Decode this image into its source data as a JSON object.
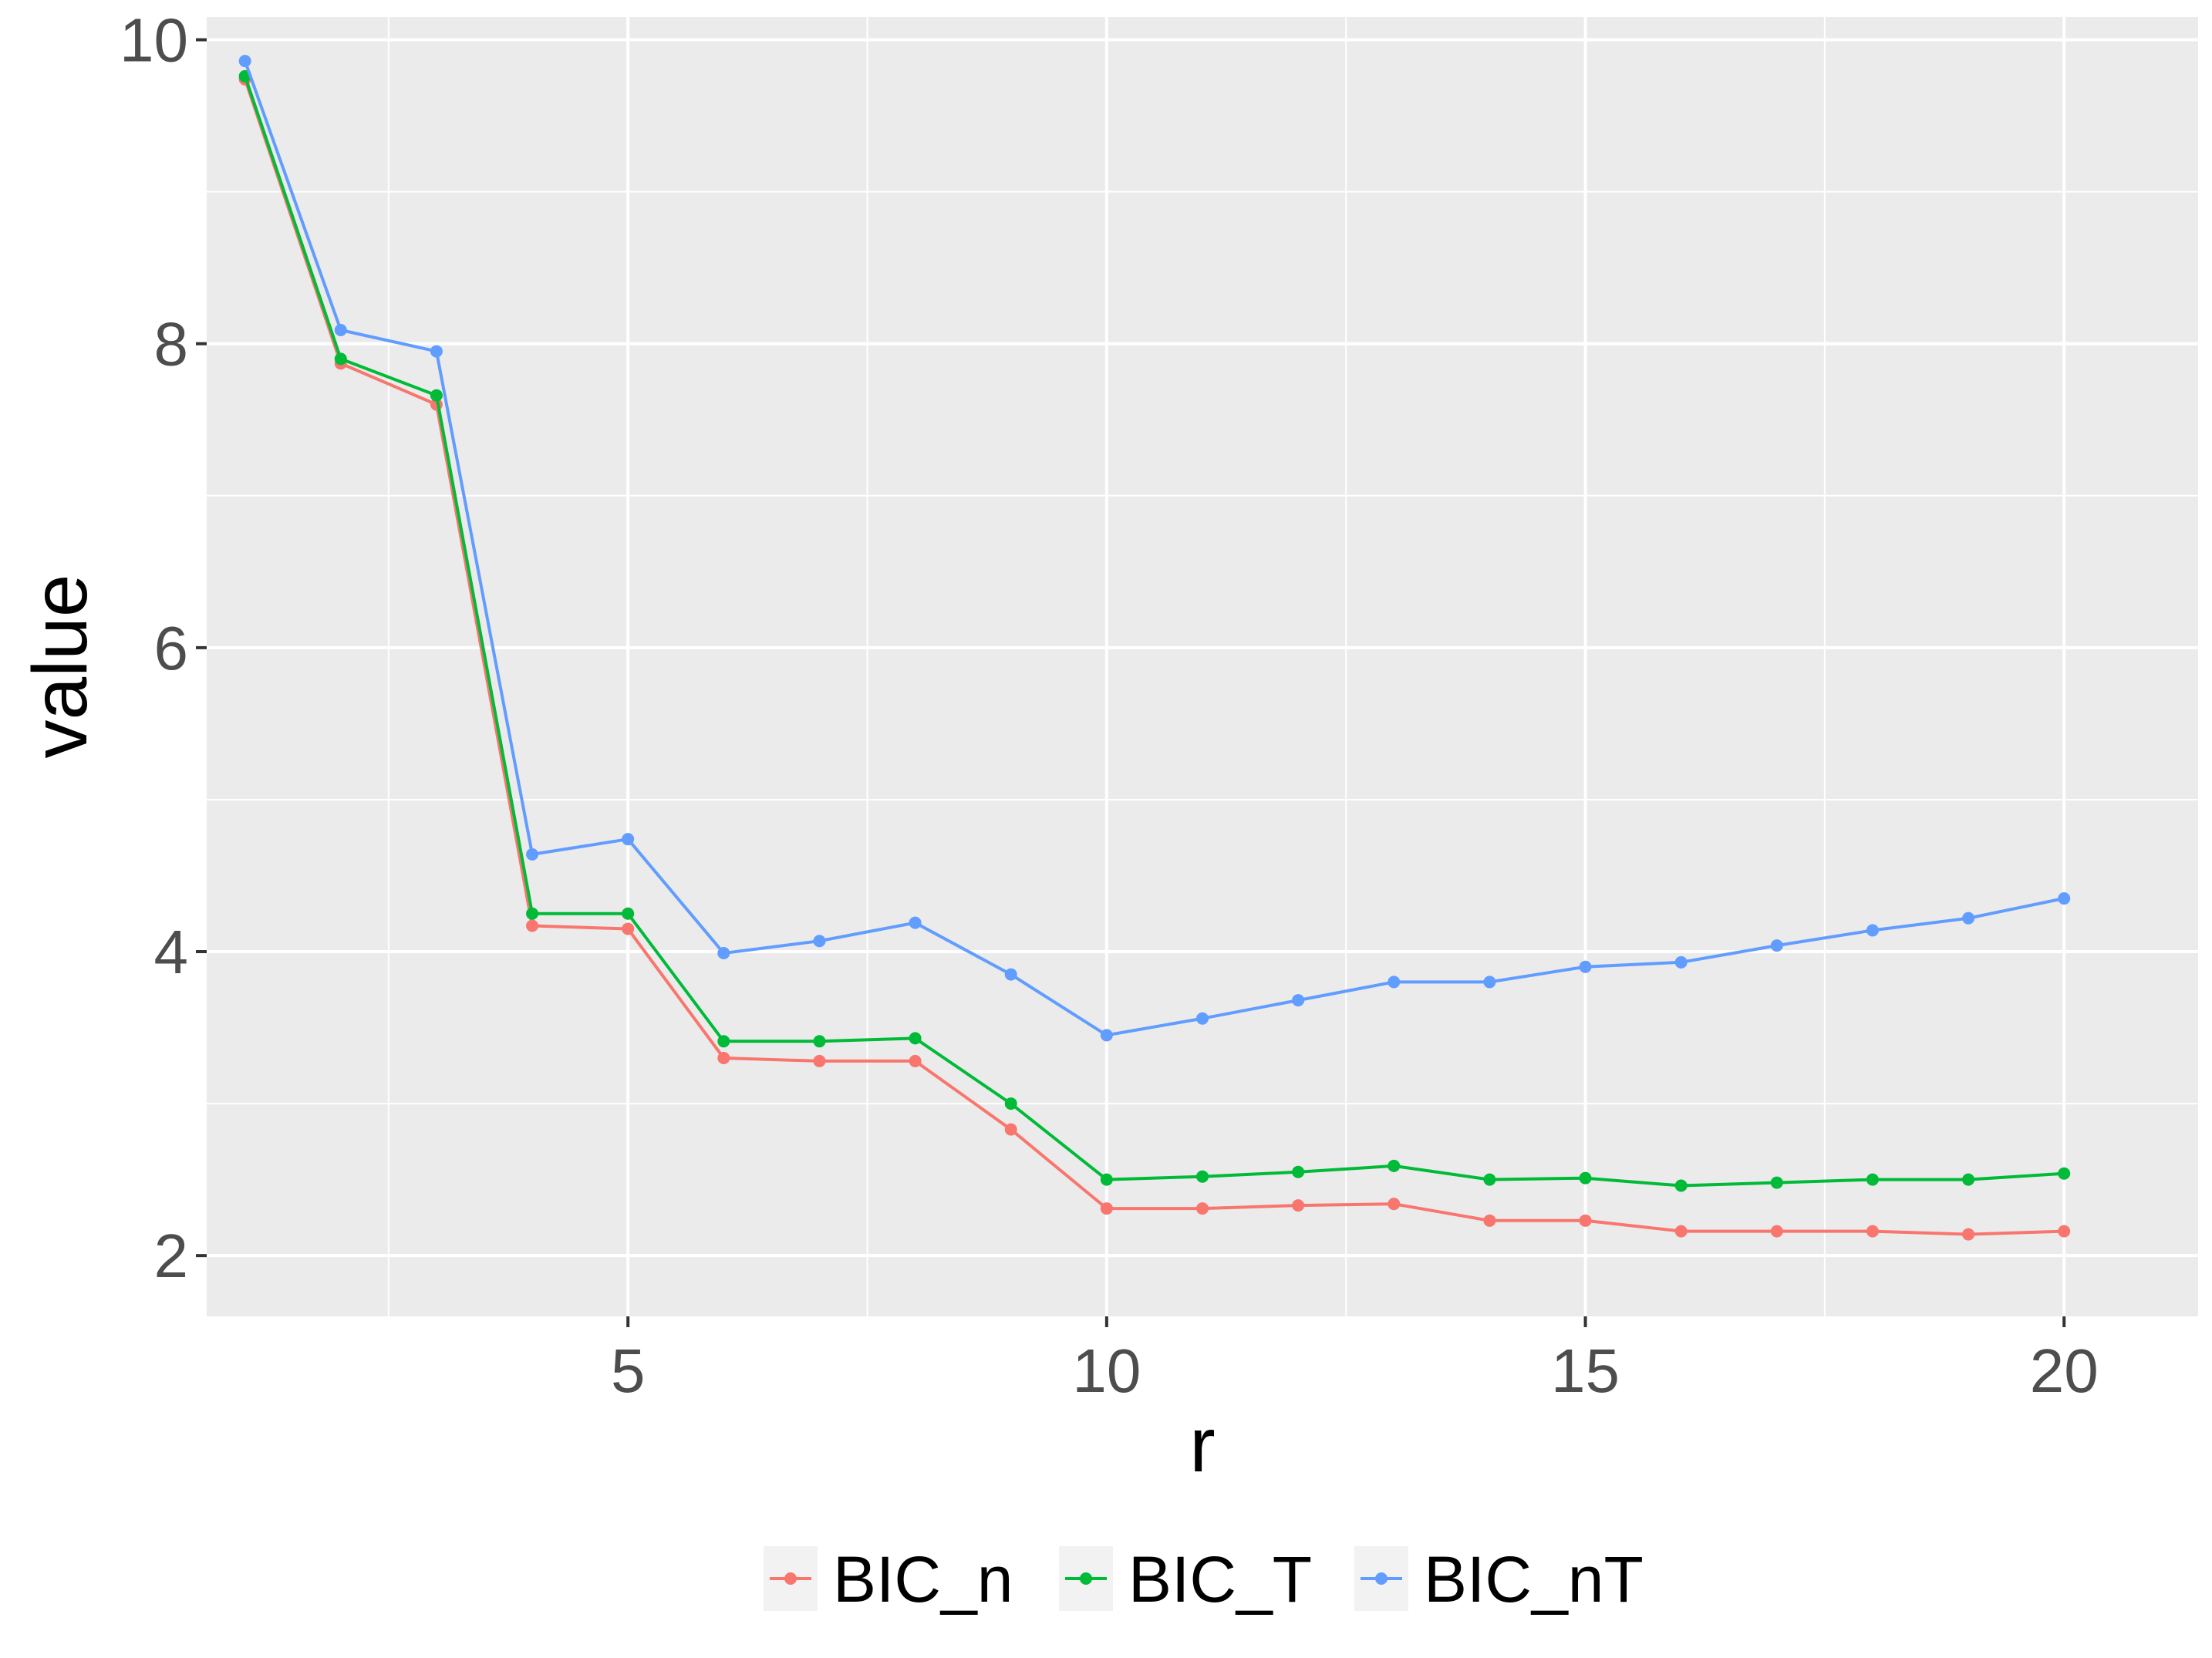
{
  "chart_data": {
    "type": "line",
    "xlabel": "r",
    "ylabel": "value",
    "xlim": [
      0.6,
      21.4
    ],
    "ylim": [
      1.6,
      10.15
    ],
    "x_ticks": [
      5,
      10,
      15,
      20
    ],
    "x_tick_labels": [
      "5",
      "10",
      "15",
      "20"
    ],
    "x_minor": [
      2.5,
      7.5,
      12.5,
      17.5
    ],
    "y_ticks": [
      2,
      4,
      6,
      8,
      10
    ],
    "y_tick_labels": [
      "2",
      "4",
      "6",
      "8",
      "10"
    ],
    "y_minor": [
      3,
      5,
      7,
      9
    ],
    "grid": true,
    "legend_position": "bottom",
    "x": [
      1,
      2,
      3,
      4,
      5,
      6,
      7,
      8,
      9,
      10,
      11,
      12,
      13,
      14,
      15,
      16,
      17,
      18,
      19,
      20
    ],
    "series": [
      {
        "name": "BIC_n",
        "color": "#F8766D",
        "values": [
          9.74,
          7.87,
          7.6,
          4.17,
          4.15,
          3.3,
          3.28,
          3.28,
          2.83,
          2.31,
          2.31,
          2.33,
          2.34,
          2.23,
          2.23,
          2.16,
          2.16,
          2.16,
          2.14,
          2.16
        ]
      },
      {
        "name": "BIC_T",
        "color": "#00BA38",
        "values": [
          9.76,
          7.9,
          7.66,
          4.25,
          4.25,
          3.41,
          3.41,
          3.43,
          3.0,
          2.5,
          2.52,
          2.55,
          2.59,
          2.5,
          2.51,
          2.46,
          2.48,
          2.5,
          2.5,
          2.54
        ]
      },
      {
        "name": "BIC_nT",
        "color": "#619CFF",
        "values": [
          9.86,
          8.09,
          7.95,
          4.64,
          4.74,
          3.99,
          4.07,
          4.19,
          3.85,
          3.45,
          3.56,
          3.68,
          3.8,
          3.8,
          3.9,
          3.93,
          4.04,
          4.14,
          4.22,
          4.35
        ]
      }
    ]
  }
}
